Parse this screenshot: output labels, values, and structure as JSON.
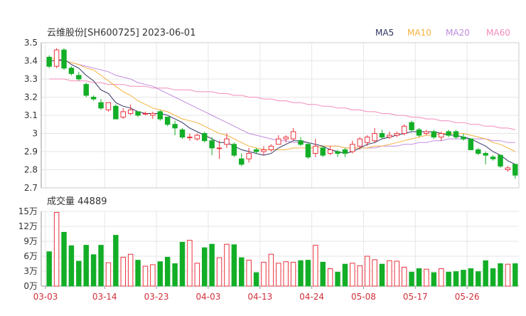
{
  "header": {
    "title": "云维股份[SH600725] 2023-06-01",
    "volume_label": "成交量 44889"
  },
  "colors": {
    "up": "#e8333d",
    "down": "#13ae27",
    "ma5": "#333366",
    "ma10": "#f4b13d",
    "ma20": "#c08be0",
    "ma60": "#f28bbb",
    "grid": "#e6e6e6",
    "axis": "#333333",
    "date_label": "#d0303a"
  },
  "chart_data": [
    {
      "type": "candlestick",
      "legend": [
        "MA5",
        "MA10",
        "MA20",
        "MA60"
      ],
      "y_ticks": [
        "3.5",
        "3.4",
        "3.3",
        "3.2",
        "3.1",
        "3",
        "2.9",
        "2.8",
        "2.7"
      ],
      "ylim": [
        2.7,
        3.5
      ],
      "grid": true,
      "legend_position": "top-right",
      "candles": [
        [
          3.42,
          3.37,
          3.43,
          3.36
        ],
        [
          3.37,
          3.46,
          3.47,
          3.36
        ],
        [
          3.46,
          3.36,
          3.47,
          3.35
        ],
        [
          3.36,
          3.33,
          3.37,
          3.32
        ],
        [
          3.32,
          3.3,
          3.34,
          3.29
        ],
        [
          3.27,
          3.21,
          3.28,
          3.2
        ],
        [
          3.2,
          3.19,
          3.21,
          3.18
        ],
        [
          3.17,
          3.14,
          3.19,
          3.13
        ],
        [
          3.13,
          3.17,
          3.17,
          3.12
        ],
        [
          3.15,
          3.08,
          3.16,
          3.08
        ],
        [
          3.09,
          3.12,
          3.14,
          3.08
        ],
        [
          3.11,
          3.13,
          3.16,
          3.1
        ],
        [
          3.12,
          3.1,
          3.12,
          3.09
        ],
        [
          3.11,
          3.11,
          3.12,
          3.1
        ],
        [
          3.1,
          3.11,
          3.12,
          3.08
        ],
        [
          3.12,
          3.08,
          3.13,
          3.07
        ],
        [
          3.09,
          3.05,
          3.09,
          3.04
        ],
        [
          3.05,
          3.03,
          3.07,
          2.99
        ],
        [
          3.02,
          2.98,
          3.03,
          2.97
        ],
        [
          2.98,
          2.98,
          3.0,
          2.96
        ],
        [
          2.97,
          2.99,
          3.0,
          2.96
        ],
        [
          3.0,
          2.96,
          3.01,
          2.95
        ],
        [
          2.96,
          2.92,
          2.98,
          2.88
        ],
        [
          2.92,
          2.92,
          2.96,
          2.86
        ],
        [
          2.94,
          2.97,
          3.0,
          2.92
        ],
        [
          2.94,
          2.88,
          2.95,
          2.87
        ],
        [
          2.86,
          2.83,
          2.89,
          2.82
        ],
        [
          2.86,
          2.89,
          2.92,
          2.84
        ],
        [
          2.91,
          2.9,
          2.92,
          2.89
        ],
        [
          2.9,
          2.91,
          2.93,
          2.88
        ],
        [
          2.91,
          2.93,
          2.94,
          2.9
        ],
        [
          2.94,
          2.97,
          2.99,
          2.94
        ],
        [
          2.97,
          2.98,
          2.99,
          2.95
        ],
        [
          2.97,
          3.01,
          3.03,
          2.96
        ],
        [
          2.96,
          2.94,
          2.98,
          2.93
        ],
        [
          2.94,
          2.87,
          2.95,
          2.86
        ],
        [
          2.89,
          2.93,
          2.97,
          2.87
        ],
        [
          2.92,
          2.88,
          2.93,
          2.87
        ],
        [
          2.89,
          2.91,
          2.93,
          2.88
        ],
        [
          2.9,
          2.89,
          2.91,
          2.87
        ],
        [
          2.91,
          2.89,
          2.92,
          2.87
        ],
        [
          2.9,
          2.94,
          2.96,
          2.89
        ],
        [
          2.93,
          2.97,
          2.98,
          2.91
        ],
        [
          2.95,
          2.98,
          2.99,
          2.93
        ],
        [
          2.96,
          3.0,
          3.03,
          2.95
        ],
        [
          3.0,
          2.98,
          3.02,
          2.97
        ],
        [
          2.98,
          2.99,
          3.01,
          2.97
        ],
        [
          2.99,
          3.0,
          3.01,
          2.98
        ],
        [
          3.0,
          3.04,
          3.05,
          2.99
        ],
        [
          3.06,
          3.02,
          3.07,
          3.01
        ],
        [
          3.02,
          2.99,
          3.03,
          2.98
        ],
        [
          3.0,
          3.01,
          3.02,
          2.99
        ],
        [
          3.01,
          2.98,
          3.02,
          2.97
        ],
        [
          2.98,
          3.0,
          3.01,
          2.96
        ],
        [
          3.01,
          2.99,
          3.02,
          2.98
        ],
        [
          3.01,
          2.98,
          3.02,
          2.97
        ],
        [
          2.98,
          2.97,
          3.0,
          2.96
        ],
        [
          2.97,
          2.91,
          2.97,
          2.91
        ],
        [
          2.91,
          2.89,
          2.92,
          2.88
        ],
        [
          2.89,
          2.88,
          2.9,
          2.83
        ],
        [
          2.87,
          2.86,
          2.88,
          2.85
        ],
        [
          2.88,
          2.82,
          2.88,
          2.81
        ],
        [
          2.8,
          2.81,
          2.82,
          2.79
        ],
        [
          2.83,
          2.77,
          2.83,
          2.75
        ]
      ],
      "ma5": [
        3.4,
        3.4,
        3.41,
        3.38,
        3.36,
        3.32,
        3.29,
        3.24,
        3.22,
        3.17,
        3.15,
        3.14,
        3.12,
        3.11,
        3.11,
        3.11,
        3.1,
        3.08,
        3.06,
        3.03,
        3.01,
        2.99,
        2.97,
        2.95,
        2.95,
        2.93,
        2.91,
        2.9,
        2.89,
        2.88,
        2.89,
        2.92,
        2.94,
        2.96,
        2.96,
        2.95,
        2.94,
        2.93,
        2.91,
        2.9,
        2.89,
        2.9,
        2.92,
        2.94,
        2.95,
        2.97,
        2.98,
        2.99,
        3.0,
        3.01,
        3.01,
        3.01,
        3.01,
        3.0,
        2.99,
        2.99,
        2.98,
        2.97,
        2.95,
        2.93,
        2.9,
        2.88,
        2.85,
        2.83
      ],
      "ma10": [
        3.41,
        3.41,
        3.4,
        3.39,
        3.38,
        3.36,
        3.35,
        3.32,
        3.29,
        3.26,
        3.23,
        3.21,
        3.18,
        3.16,
        3.14,
        3.13,
        3.12,
        3.1,
        3.08,
        3.07,
        3.06,
        3.04,
        3.02,
        3.0,
        2.99,
        2.97,
        2.95,
        2.93,
        2.92,
        2.91,
        2.91,
        2.91,
        2.91,
        2.92,
        2.92,
        2.92,
        2.92,
        2.93,
        2.93,
        2.93,
        2.92,
        2.92,
        2.92,
        2.92,
        2.93,
        2.93,
        2.94,
        2.95,
        2.96,
        2.97,
        2.98,
        2.99,
        2.99,
        3.0,
        3.0,
        3.0,
        3.0,
        2.99,
        2.98,
        2.97,
        2.95,
        2.94,
        2.92,
        2.9
      ],
      "ma20": [
        3.4,
        3.4,
        3.4,
        3.39,
        3.38,
        3.37,
        3.36,
        3.35,
        3.34,
        3.32,
        3.31,
        3.3,
        3.28,
        3.27,
        3.26,
        3.24,
        3.22,
        3.2,
        3.18,
        3.16,
        3.14,
        3.12,
        3.1,
        3.08,
        3.06,
        3.04,
        3.02,
        3.0,
        2.99,
        2.98,
        2.97,
        2.96,
        2.96,
        2.95,
        2.95,
        2.95,
        2.94,
        2.93,
        2.93,
        2.93,
        2.92,
        2.92,
        2.92,
        2.92,
        2.92,
        2.93,
        2.93,
        2.93,
        2.94,
        2.94,
        2.95,
        2.95,
        2.96,
        2.96,
        2.97,
        2.97,
        2.97,
        2.97,
        2.97,
        2.97,
        2.96,
        2.96,
        2.95,
        2.95
      ],
      "ma60": [
        3.3,
        3.3,
        3.3,
        3.29,
        3.29,
        3.29,
        3.28,
        3.28,
        3.27,
        3.27,
        3.27,
        3.26,
        3.26,
        3.26,
        3.25,
        3.25,
        3.25,
        3.24,
        3.24,
        3.24,
        3.23,
        3.23,
        3.23,
        3.22,
        3.22,
        3.21,
        3.21,
        3.2,
        3.2,
        3.19,
        3.19,
        3.18,
        3.18,
        3.17,
        3.17,
        3.16,
        3.16,
        3.15,
        3.15,
        3.14,
        3.14,
        3.13,
        3.13,
        3.12,
        3.12,
        3.11,
        3.11,
        3.1,
        3.1,
        3.09,
        3.09,
        3.08,
        3.08,
        3.07,
        3.07,
        3.06,
        3.06,
        3.05,
        3.05,
        3.04,
        3.04,
        3.03,
        3.03,
        3.02
      ]
    },
    {
      "type": "bar",
      "y_ticks": [
        "15万",
        "12万",
        "9万",
        "6万",
        "3万",
        "0万"
      ],
      "ylim": [
        0,
        15
      ],
      "x_ticks": [
        {
          "label": "03-03",
          "index": 0
        },
        {
          "label": "03-14",
          "index": 8
        },
        {
          "label": "03-23",
          "index": 15
        },
        {
          "label": "04-03",
          "index": 22
        },
        {
          "label": "04-13",
          "index": 29
        },
        {
          "label": "04-24",
          "index": 36
        },
        {
          "label": "05-08",
          "index": 43
        },
        {
          "label": "05-17",
          "index": 50
        },
        {
          "label": "05-26",
          "index": 57
        }
      ],
      "values": [
        6.9,
        14.8,
        10.8,
        8.1,
        5.0,
        8.2,
        6.3,
        8.2,
        4.7,
        10.2,
        5.8,
        6.4,
        5.2,
        4.0,
        4.3,
        4.9,
        5.8,
        4.5,
        8.8,
        9.2,
        4.6,
        7.7,
        8.4,
        5.7,
        8.4,
        8.3,
        5.7,
        5.2,
        2.7,
        4.8,
        6.4,
        4.6,
        4.9,
        4.8,
        5.1,
        5.2,
        8.2,
        4.8,
        3.5,
        2.8,
        4.4,
        4.6,
        4.1,
        6.0,
        5.3,
        4.4,
        5.1,
        5.0,
        3.8,
        2.8,
        3.5,
        3.4,
        2.7,
        3.5,
        2.8,
        2.9,
        3.2,
        3.5,
        2.9,
        5.1,
        3.5,
        4.5,
        4.4,
        4.5
      ]
    }
  ]
}
